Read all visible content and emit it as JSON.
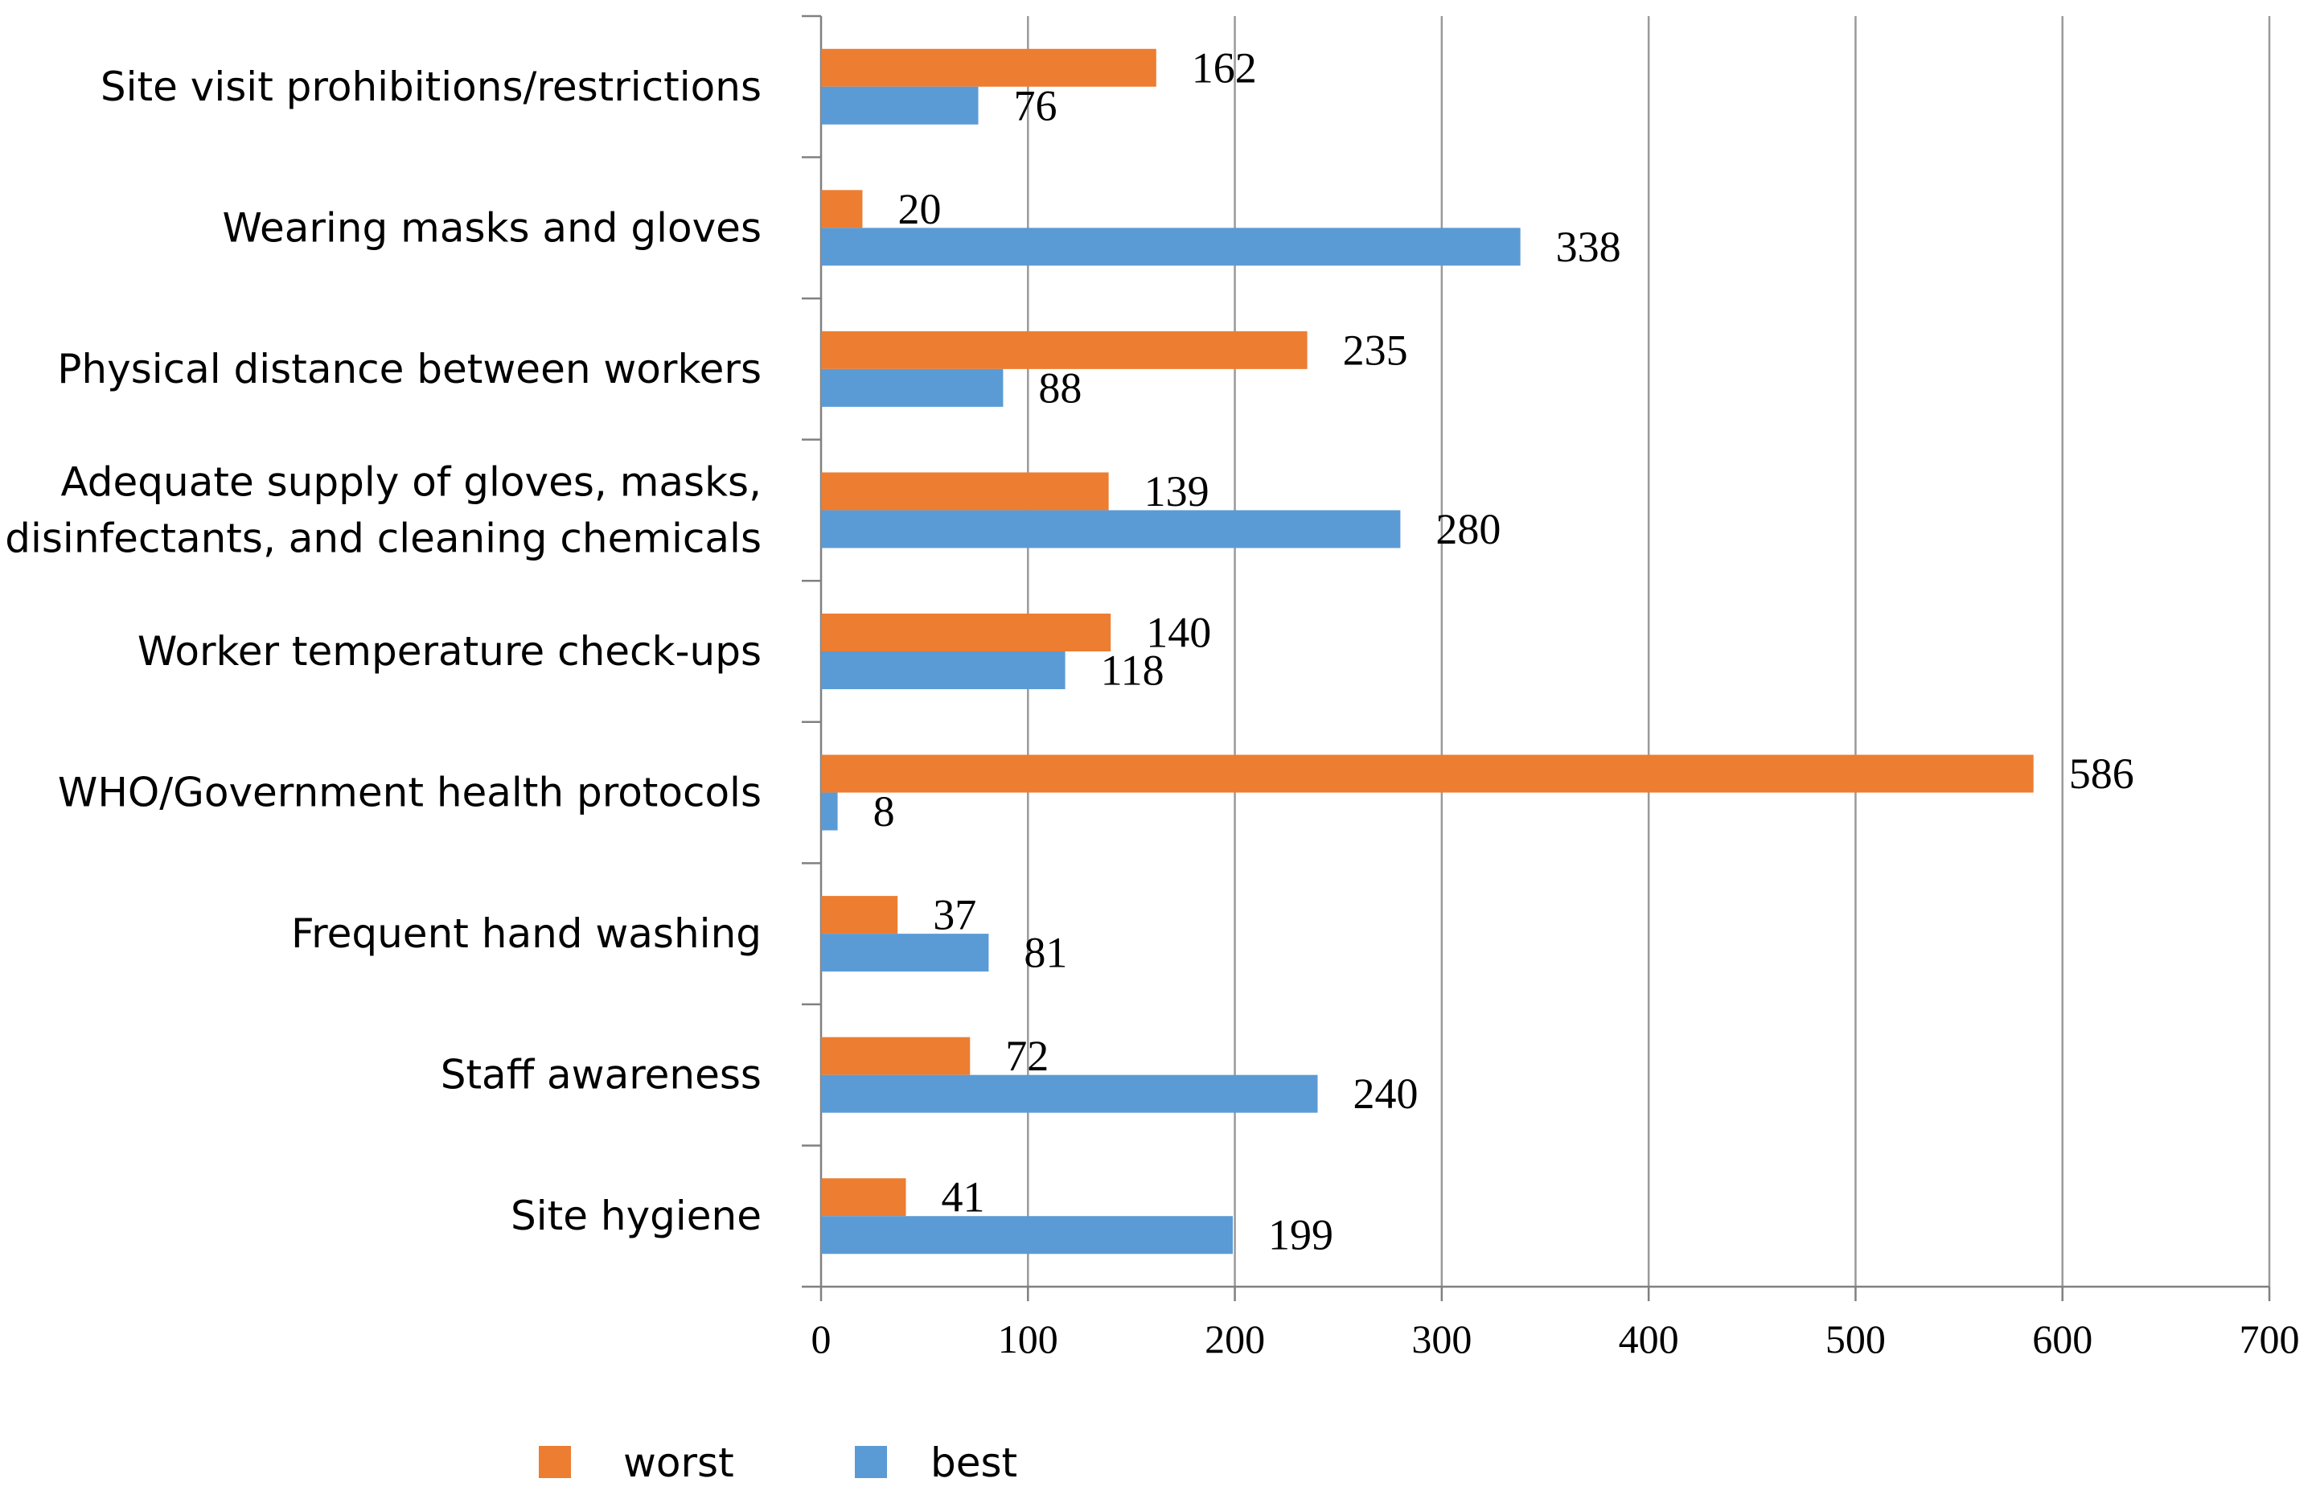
{
  "chart_data": {
    "type": "bar",
    "orientation": "horizontal",
    "title": "",
    "xlabel": "",
    "ylabel": "",
    "xlim": [
      0,
      700
    ],
    "x_ticks": [
      0,
      100,
      200,
      300,
      400,
      500,
      600,
      700
    ],
    "grid": "vertical",
    "legend_position": "bottom",
    "categories": [
      "Site visit prohibitions/restrictions",
      "Wearing masks and gloves",
      "Physical distance between workers",
      "Adequate supply of gloves, masks,|disinfectants, and cleaning chemicals",
      "Worker temperature check-ups",
      "WHO/Government health protocols",
      "Frequent hand washing",
      "Staff awareness",
      "Site hygiene"
    ],
    "series": [
      {
        "name": "worst",
        "color": "#ED7D31",
        "values": [
          162,
          20,
          235,
          139,
          140,
          586,
          37,
          72,
          41
        ]
      },
      {
        "name": "best",
        "color": "#5B9BD5",
        "values": [
          76,
          338,
          88,
          280,
          118,
          8,
          81,
          240,
          199
        ]
      }
    ]
  }
}
